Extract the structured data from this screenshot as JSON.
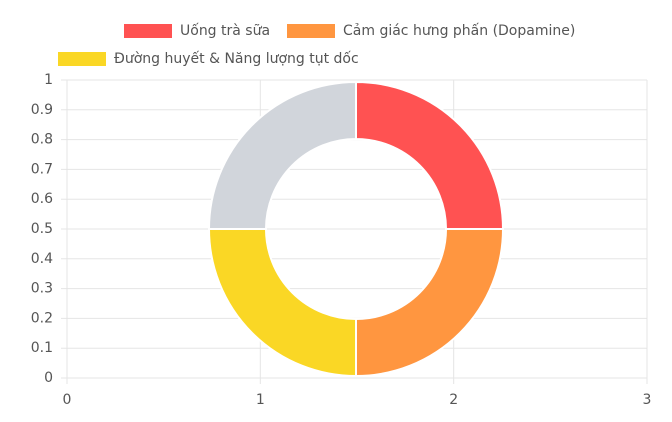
{
  "chart_data": {
    "type": "doughnut",
    "categories": [
      "Uống trà sữa",
      "Cảm giác hưng phấn (Dopamine)",
      "Đường huyết & Năng lượng tụt dốc",
      null
    ],
    "values": [
      1,
      1,
      1,
      1
    ],
    "colors": [
      "#ff5252",
      "#ff9640",
      "#fad725",
      "#d1d5db"
    ],
    "xlim": [
      0,
      3
    ],
    "xticks": [
      0,
      1,
      2,
      3
    ],
    "ylim": [
      0,
      1
    ],
    "yticks": [
      0,
      0.1,
      0.2,
      0.3,
      0.4,
      0.5,
      0.6,
      0.7,
      0.8,
      0.9,
      1
    ],
    "grid": true,
    "legend": "top"
  }
}
